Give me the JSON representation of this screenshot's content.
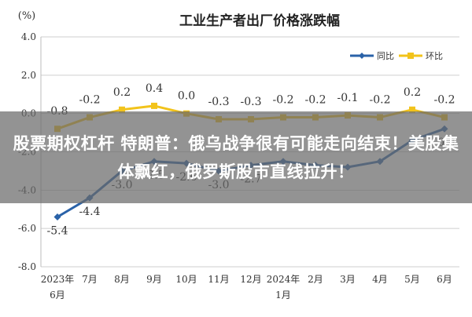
{
  "chart_data": {
    "type": "line",
    "title": "工业生产者出厂价格涨跌幅",
    "ylabel": "(%)",
    "ylim": [
      -8.0,
      4.0
    ],
    "yticks": [
      "-8.0",
      "-6.0",
      "-4.0",
      "-2.0",
      "0.0",
      "2.0",
      "4.0"
    ],
    "categories": [
      [
        "2023年",
        "6月"
      ],
      [
        "7月"
      ],
      [
        "8月"
      ],
      [
        "9月"
      ],
      [
        "10月"
      ],
      [
        "11月"
      ],
      [
        "12月"
      ],
      [
        "2024年",
        "1月"
      ],
      [
        "2月"
      ],
      [
        "3月"
      ],
      [
        "4月"
      ],
      [
        "5月"
      ],
      [
        "6月"
      ]
    ],
    "grid": true,
    "legend_position": "top-right",
    "series": [
      {
        "name": "同比",
        "color": "#2a62a8",
        "values": [
          -5.4,
          -4.4,
          -3.0,
          -2.5,
          -2.6,
          -3.0,
          -2.7,
          -2.5,
          -2.7,
          -2.8,
          -2.5,
          -1.4,
          -0.8
        ],
        "labels": [
          "-5.4",
          "-4.4",
          "-3.0",
          "-2.5",
          "-2.6",
          "-3.0",
          "-2.7",
          "",
          "",
          "",
          "",
          "",
          "-0.8"
        ]
      },
      {
        "name": "环比",
        "color": "#f2c31b",
        "values": [
          -0.8,
          -0.2,
          0.2,
          0.4,
          0.0,
          -0.3,
          -0.3,
          -0.2,
          -0.2,
          -0.1,
          -0.2,
          0.2,
          -0.2
        ],
        "labels": [
          "-0.8",
          "-0.2",
          "0.2",
          "0.4",
          "0.0",
          "-0.3",
          "-0.3",
          "-0.2",
          "-0.2",
          "-0.1",
          "-0.2",
          "0.2",
          "-0.2"
        ]
      }
    ]
  },
  "banner": {
    "text": "股票期权杠杆 特朗普：俄乌战争很有可能走向结束！美股集体飘红，俄罗斯股市直线拉升！"
  }
}
